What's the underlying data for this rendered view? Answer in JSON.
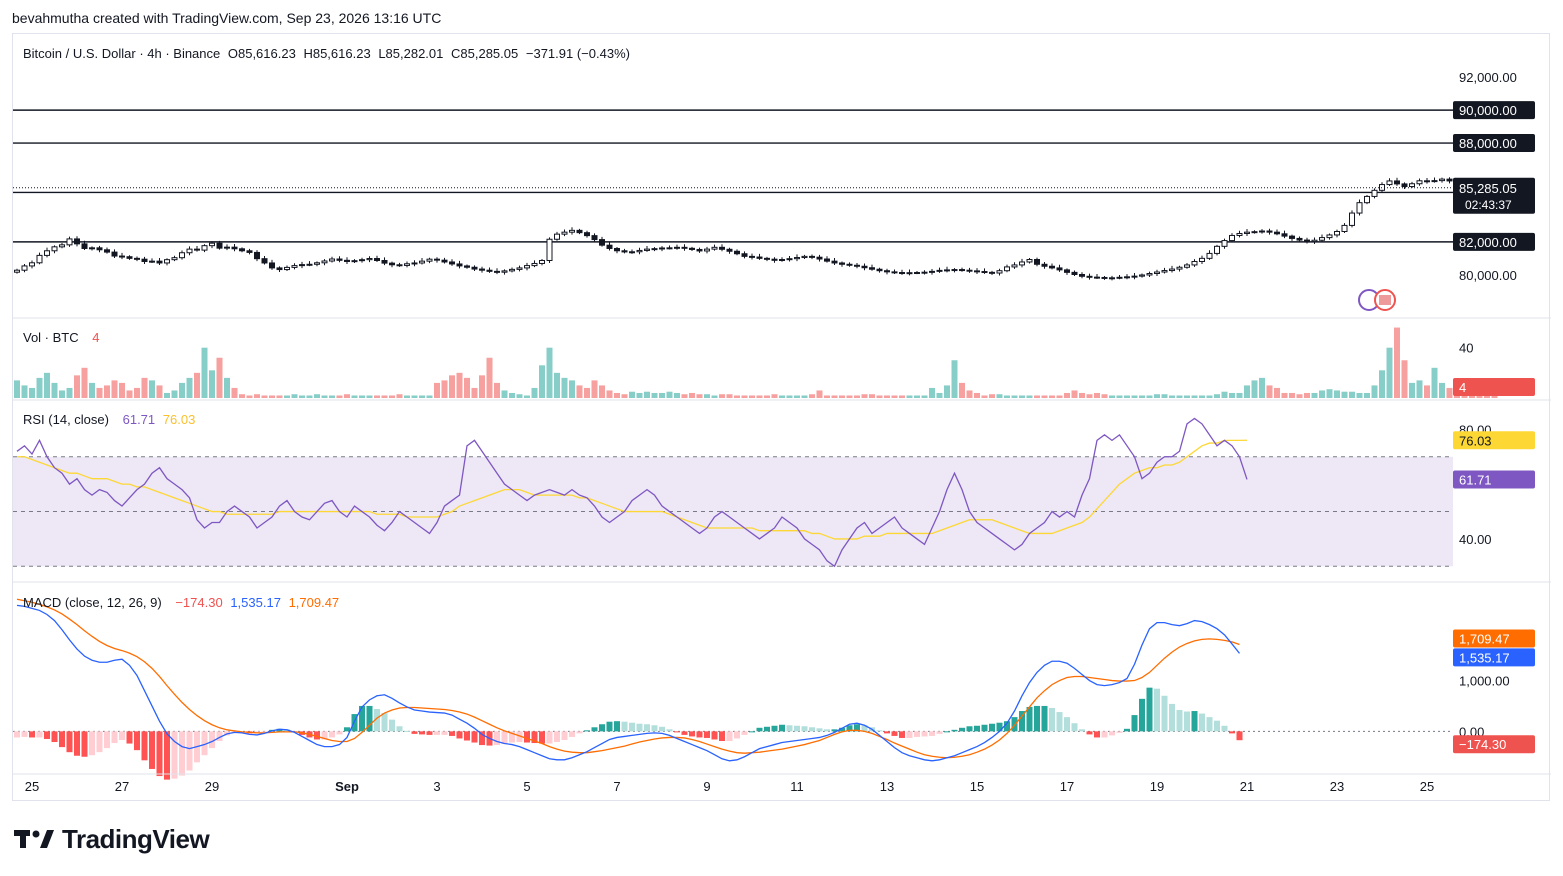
{
  "attribution": "bevahmutha created with TradingView.com, Sep 23, 2026 13:16 UTC",
  "header": {
    "symbol": "Bitcoin / U.S. Dollar · 4h · Binance",
    "open": "O85,616.23",
    "high": "H85,616.23",
    "low": "L85,282.01",
    "close": "C85,285.05",
    "change": "−371.91 (−0.43%)"
  },
  "brand": "TradingView",
  "colors": {
    "up": "#26a69a",
    "down": "#ef5350",
    "candle_body": "#131722",
    "rsi": "#7e57c2",
    "rsi_ma": "#fdd835",
    "macd": "#2962ff",
    "signal": "#ff6d00",
    "rsi_band": "#ede7f6"
  },
  "price_pane": {
    "y_min": 77500,
    "y_max": 94500,
    "tick_labels": [
      {
        "value": 92000,
        "label": "92,000.00"
      },
      {
        "value": 80000,
        "label": "80,000.00"
      }
    ],
    "levels": [
      {
        "value": 90000,
        "label": "90,000.00"
      },
      {
        "value": 88000,
        "label": "88,000.00"
      },
      {
        "value": 85000,
        "label": "85,000.00"
      },
      {
        "value": 82000,
        "label": "82,000.00"
      }
    ],
    "current_price": {
      "value": 85285.05,
      "label": "85,285.05",
      "countdown": "02:43:37"
    },
    "closes": [
      80280,
      80540,
      80730,
      81180,
      81460,
      81700,
      81820,
      82180,
      81880,
      81600,
      81640,
      81520,
      81380,
      81140,
      81100,
      81000,
      80950,
      80810,
      80830,
      80720,
      80920,
      81040,
      81340,
      81560,
      81500,
      81770,
      81920,
      81620,
      81680,
      81580,
      81460,
      81360,
      80980,
      80720,
      80420,
      80320,
      80450,
      80560,
      80620,
      80640,
      80730,
      80840,
      80960,
      80880,
      80810,
      80860,
      80920,
      80990,
      80870,
      80710,
      80610,
      80570,
      80670,
      80720,
      80830,
      80950,
      80890,
      80780,
      80660,
      80540,
      80460,
      80350,
      80280,
      80210,
      80160,
      80240,
      80330,
      80420,
      80560,
      80690,
      80870,
      82160,
      82470,
      82590,
      82700,
      82560,
      82380,
      82140,
      81800,
      81600,
      81460,
      81390,
      81400,
      81480,
      81560,
      81590,
      81630,
      81640,
      81670,
      81610,
      81540,
      81450,
      81560,
      81670,
      81550,
      81430,
      81280,
      81120,
      81080,
      81000,
      80950,
      80880,
      80930,
      80980,
      81050,
      81120,
      81070,
      80960,
      80830,
      80720,
      80640,
      80580,
      80520,
      80430,
      80340,
      80250,
      80180,
      80140,
      80120,
      80130,
      80140,
      80160,
      80210,
      80270,
      80300,
      80320,
      80280,
      80240,
      80200,
      80150,
      80110,
      80250,
      80480,
      80600,
      80780,
      80930,
      80640,
      80520,
      80420,
      80300,
      80150,
      80020,
      79910,
      79860,
      79840,
      79810,
      79820,
      79850,
      79880,
      79920,
      79990,
      80080,
      80170,
      80260,
      80350,
      80460,
      80600,
      80810,
      81000,
      81300,
      81730,
      82080,
      82390,
      82510,
      82590,
      82620,
      82660,
      82590,
      82490,
      82350,
      82210,
      82110,
      82020,
      82100,
      82260,
      82420,
      82630,
      83000,
      83750,
      84380,
      84760,
      85130,
      85480,
      85700,
      85520,
      85360,
      85530,
      85710,
      85690,
      85720,
      85810,
      85700,
      85610,
      85516,
      85285
    ]
  },
  "volume_pane": {
    "label": "Vol · BTC",
    "value": "4",
    "tick_labels": [
      {
        "value": 40,
        "label": "40"
      }
    ],
    "y_max": 62,
    "values": [
      14,
      10,
      8,
      16,
      20,
      12,
      6,
      8,
      18,
      24,
      12,
      8,
      10,
      14,
      12,
      6,
      8,
      16,
      14,
      10,
      4,
      6,
      12,
      16,
      20,
      40,
      22,
      32,
      16,
      8,
      3,
      2,
      3,
      2,
      2,
      2,
      2,
      3,
      2,
      2,
      3,
      2,
      2,
      2,
      3,
      2,
      2,
      2,
      2,
      2,
      2,
      3,
      2,
      2,
      2,
      2,
      12,
      14,
      18,
      20,
      16,
      8,
      18,
      32,
      12,
      6,
      4,
      3,
      2,
      8,
      26,
      40,
      20,
      16,
      14,
      10,
      8,
      14,
      10,
      6,
      4,
      3,
      5,
      4,
      5,
      4,
      4,
      5,
      4,
      3,
      4,
      3,
      3,
      2,
      3,
      3,
      2,
      2,
      2,
      2,
      2,
      3,
      2,
      2,
      2,
      2,
      3,
      6,
      2,
      2,
      2,
      2,
      2,
      3,
      3,
      2,
      2,
      2,
      2,
      2,
      2,
      2,
      8,
      4,
      10,
      30,
      12,
      6,
      4,
      2,
      3,
      3,
      2,
      2,
      2,
      2,
      2,
      2,
      2,
      2,
      4,
      6,
      4,
      3,
      4,
      3,
      2,
      2,
      2,
      2,
      2,
      2,
      3,
      3,
      2,
      2,
      2,
      2,
      2,
      2,
      3,
      5,
      4,
      4,
      10,
      14,
      16,
      10,
      8,
      4,
      4,
      3,
      4,
      4,
      6,
      7,
      6,
      5,
      5,
      4,
      4,
      10,
      22,
      40,
      56,
      30,
      12,
      14,
      10,
      24,
      12,
      8,
      10,
      12,
      10,
      8,
      6,
      4
    ]
  },
  "rsi_pane": {
    "label": "RSI (14, close)",
    "value": "61.71",
    "ma_value": "76.03",
    "y_min": 25,
    "y_max": 90,
    "upper_band": 70,
    "lower_band": 30,
    "mid_line": 50,
    "tick_labels": [
      {
        "value": 80,
        "label": "80.00"
      },
      {
        "value": 40,
        "label": "40.00"
      }
    ],
    "values": [
      72,
      74,
      71,
      76,
      70,
      66,
      64,
      60,
      62,
      58,
      56,
      58,
      57,
      54,
      52,
      55,
      58,
      60,
      64,
      66,
      62,
      60,
      58,
      55,
      47,
      44,
      46,
      46,
      50,
      52,
      50,
      48,
      44,
      46,
      48,
      52,
      54,
      50,
      48,
      47,
      50,
      53,
      54,
      50,
      48,
      52,
      50,
      48,
      45,
      43,
      46,
      50,
      48,
      46,
      44,
      42,
      46,
      52,
      54,
      56,
      74,
      76,
      72,
      68,
      64,
      60,
      58,
      56,
      54,
      56,
      57,
      58,
      57,
      56,
      58,
      56,
      55,
      52,
      48,
      46,
      48,
      50,
      54,
      56,
      58,
      56,
      52,
      50,
      48,
      46,
      44,
      42,
      44,
      48,
      50,
      48,
      46,
      44,
      42,
      40,
      42,
      44,
      48,
      46,
      44,
      40,
      38,
      36,
      32,
      30,
      36,
      40,
      44,
      46,
      42,
      44,
      46,
      48,
      44,
      42,
      40,
      38,
      44,
      50,
      58,
      64,
      58,
      50,
      46,
      44,
      42,
      40,
      38,
      36,
      38,
      42,
      44,
      46,
      50,
      48,
      50,
      48,
      56,
      62,
      76,
      78,
      76,
      78,
      74,
      70,
      62,
      64,
      68,
      70,
      70,
      72,
      82,
      84,
      82,
      78,
      74,
      76,
      74,
      70,
      61.71
    ],
    "ma_values": [
      70,
      70,
      69,
      68,
      67,
      66,
      65,
      64,
      64,
      63,
      62,
      62,
      62,
      61,
      60,
      60,
      59,
      59,
      58,
      57,
      56,
      55,
      54,
      53,
      52,
      51,
      50,
      50,
      49,
      49,
      49,
      49,
      49,
      49,
      49,
      50,
      50,
      50,
      50,
      50,
      50,
      50,
      50,
      50,
      50,
      50,
      50,
      50,
      49,
      49,
      49,
      49,
      48,
      48,
      48,
      48,
      48,
      49,
      50,
      52,
      53,
      54,
      55,
      56,
      57,
      58,
      58,
      58,
      57,
      56,
      56,
      56,
      56,
      56,
      56,
      55,
      55,
      54,
      53,
      52,
      51,
      50,
      50,
      50,
      50,
      50,
      50,
      49,
      48,
      47,
      46,
      45,
      44,
      44,
      44,
      44,
      44,
      44,
      44,
      43,
      43,
      43,
      43,
      43,
      43,
      43,
      42,
      42,
      41,
      40,
      40,
      40,
      40,
      41,
      41,
      41,
      42,
      42,
      42,
      42,
      42,
      42,
      42,
      43,
      44,
      45,
      46,
      47,
      47,
      47,
      47,
      46,
      45,
      44,
      43,
      42,
      42,
      42,
      42,
      43,
      44,
      45,
      46,
      48,
      51,
      54,
      57,
      60,
      62,
      64,
      65,
      66,
      66,
      67,
      67,
      68,
      70,
      72,
      74,
      75,
      75,
      76,
      76,
      76,
      76.03
    ]
  },
  "macd_pane": {
    "label": "MACD (close, 12, 26, 9)",
    "hist_value": "−174.30",
    "macd_value": "1,535.17",
    "signal_value": "1,709.47",
    "y_min": -800,
    "y_max": 2900,
    "tick_labels": [
      {
        "value": 1000,
        "label": "1,000.00"
      },
      {
        "value": 0,
        "label": "0.00"
      }
    ],
    "macd": [
      2480,
      2460,
      2420,
      2380,
      2300,
      2180,
      2000,
      1800,
      1620,
      1480,
      1400,
      1360,
      1360,
      1400,
      1420,
      1300,
      1100,
      800,
      500,
      200,
      -50,
      -200,
      -300,
      -340,
      -300,
      -260,
      -200,
      -120,
      -50,
      -20,
      -30,
      -60,
      -70,
      -40,
      10,
      40,
      30,
      -20,
      -100,
      -180,
      -260,
      -300,
      -300,
      -260,
      -120,
      200,
      480,
      620,
      700,
      720,
      650,
      560,
      480,
      420,
      400,
      380,
      370,
      360,
      320,
      240,
      160,
      60,
      -60,
      -140,
      -200,
      -240,
      -260,
      -300,
      -360,
      -420,
      -480,
      -540,
      -560,
      -560,
      -520,
      -460,
      -400,
      -320,
      -240,
      -160,
      -120,
      -100,
      -80,
      -60,
      -40,
      -30,
      -40,
      -80,
      -140,
      -200,
      -260,
      -320,
      -380,
      -460,
      -540,
      -580,
      -560,
      -500,
      -420,
      -340,
      -300,
      -260,
      -220,
      -200,
      -180,
      -160,
      -140,
      -120,
      -80,
      -20,
      60,
      140,
      160,
      120,
      40,
      -80,
      -200,
      -320,
      -420,
      -480,
      -520,
      -560,
      -580,
      -560,
      -520,
      -480,
      -420,
      -360,
      -300,
      -220,
      -120,
      0,
      160,
      400,
      700,
      960,
      1160,
      1300,
      1380,
      1380,
      1340,
      1240,
      1120,
      1000,
      920,
      900,
      920,
      960,
      1040,
      1320,
      1700,
      2020,
      2140,
      2140,
      2100,
      2080,
      2120,
      2180,
      2160,
      2100,
      2020,
      1900,
      1720,
      1535.17
    ],
    "signal": [
      2600,
      2570,
      2540,
      2500,
      2450,
      2390,
      2310,
      2210,
      2100,
      1980,
      1870,
      1770,
      1690,
      1630,
      1590,
      1540,
      1470,
      1370,
      1240,
      1080,
      900,
      730,
      570,
      430,
      310,
      210,
      130,
      70,
      30,
      10,
      -10,
      -20,
      -30,
      -30,
      -20,
      -10,
      -10,
      -10,
      -30,
      -60,
      -100,
      -140,
      -180,
      -200,
      -200,
      -140,
      -20,
      120,
      260,
      360,
      420,
      460,
      470,
      470,
      460,
      450,
      440,
      430,
      410,
      380,
      340,
      280,
      210,
      140,
      70,
      10,
      -40,
      -90,
      -140,
      -190,
      -240,
      -300,
      -350,
      -390,
      -410,
      -420,
      -420,
      -400,
      -380,
      -350,
      -320,
      -290,
      -250,
      -210,
      -180,
      -150,
      -130,
      -120,
      -120,
      -130,
      -160,
      -200,
      -250,
      -300,
      -350,
      -390,
      -420,
      -430,
      -420,
      -410,
      -390,
      -370,
      -350,
      -320,
      -290,
      -260,
      -220,
      -180,
      -120,
      -60,
      -10,
      20,
      20,
      0,
      -40,
      -100,
      -160,
      -230,
      -290,
      -350,
      -410,
      -460,
      -490,
      -510,
      -520,
      -510,
      -490,
      -460,
      -410,
      -350,
      -270,
      -170,
      -40,
      120,
      300,
      480,
      660,
      800,
      920,
      1000,
      1060,
      1080,
      1080,
      1060,
      1040,
      1020,
      1000,
      990,
      990,
      1000,
      1060,
      1160,
      1300,
      1440,
      1560,
      1660,
      1730,
      1780,
      1810,
      1820,
      1810,
      1790,
      1760,
      1709.47
    ]
  },
  "x_axis": {
    "labels": [
      {
        "index": 2,
        "label": "25"
      },
      {
        "index": 14,
        "label": "27"
      },
      {
        "index": 26,
        "label": "29"
      },
      {
        "index": 44,
        "label": "Sep"
      },
      {
        "index": 56,
        "label": "3"
      },
      {
        "index": 68,
        "label": "5"
      },
      {
        "index": 80,
        "label": "7"
      },
      {
        "index": 92,
        "label": "9"
      },
      {
        "index": 104,
        "label": "11"
      },
      {
        "index": 116,
        "label": "13"
      },
      {
        "index": 128,
        "label": "15"
      },
      {
        "index": 140,
        "label": "17"
      },
      {
        "index": 152,
        "label": "19"
      },
      {
        "index": 164,
        "label": "21"
      },
      {
        "index": 176,
        "label": "23"
      },
      {
        "index": 188,
        "label": "25"
      }
    ]
  }
}
